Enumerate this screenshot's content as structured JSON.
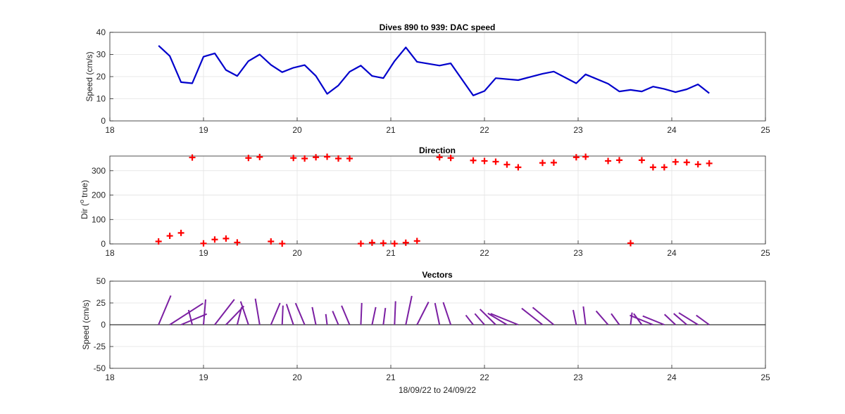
{
  "chart_data": [
    {
      "type": "line",
      "title": "Dives 890 to 939: DAC speed",
      "xlabel": "",
      "ylabel": "Speed (cm/s)",
      "xlim": [
        18,
        25
      ],
      "ylim": [
        0,
        40
      ],
      "xticks": [
        "18",
        "19",
        "20",
        "21",
        "22",
        "23",
        "24",
        "25"
      ],
      "yticks": [
        "0",
        "10",
        "20",
        "30",
        "40"
      ],
      "grid": true,
      "color": "#0000cc",
      "x": [
        18.52,
        18.64,
        18.76,
        18.88,
        19.0,
        19.12,
        19.24,
        19.36,
        19.48,
        19.6,
        19.72,
        19.84,
        19.96,
        20.08,
        20.2,
        20.32,
        20.44,
        20.56,
        20.68,
        20.8,
        20.92,
        21.04,
        21.16,
        21.28,
        21.52,
        21.64,
        21.88,
        22.0,
        22.12,
        22.36,
        22.62,
        22.74,
        22.98,
        23.08,
        23.32,
        23.44,
        23.56,
        23.68,
        23.8,
        23.92,
        24.04,
        24.16,
        24.28,
        24.4
      ],
      "values": [
        34,
        29.3,
        17.5,
        17,
        29,
        30.5,
        23,
        20.3,
        27,
        30,
        25.3,
        22,
        24,
        25.2,
        20.3,
        12.2,
        16,
        22.2,
        25,
        20.3,
        19.3,
        27,
        33.2,
        26.7,
        25,
        26,
        11.5,
        13.5,
        19.3,
        18.4,
        21.3,
        22.3,
        17,
        21,
        16.8,
        13.3,
        14,
        13.3,
        15.5,
        14.4,
        13,
        14.3,
        16.5,
        12.5
      ]
    },
    {
      "type": "scatter",
      "title": "Direction",
      "xlabel": "",
      "ylabel": "Dir (° true)",
      "ylabel_parts": {
        "prefix": "Dir (",
        "superscript": "o",
        "suffix": " true)"
      },
      "xlim": [
        18,
        25
      ],
      "ylim": [
        0,
        360
      ],
      "xticks": [
        "18",
        "19",
        "20",
        "21",
        "22",
        "23",
        "24",
        "25"
      ],
      "yticks": [
        "0",
        "100",
        "200",
        "300"
      ],
      "grid": true,
      "marker": "+",
      "color": "#ff0000",
      "x": [
        18.52,
        18.64,
        18.76,
        18.88,
        19.0,
        19.12,
        19.24,
        19.36,
        19.48,
        19.6,
        19.72,
        19.84,
        19.96,
        20.08,
        20.2,
        20.32,
        20.44,
        20.56,
        20.68,
        20.8,
        20.92,
        21.04,
        21.16,
        21.28,
        21.52,
        21.64,
        21.88,
        22.0,
        22.12,
        22.24,
        22.36,
        22.62,
        22.74,
        22.98,
        23.08,
        23.32,
        23.44,
        23.56,
        23.68,
        23.8,
        23.92,
        24.04,
        24.16,
        24.28,
        24.4
      ],
      "values": [
        10,
        33,
        45,
        354,
        2,
        18,
        22,
        6,
        352,
        356,
        10,
        1,
        352,
        350,
        355,
        357,
        350,
        350,
        1,
        5,
        3,
        1,
        5,
        12,
        355,
        352,
        342,
        340,
        337,
        325,
        314,
        332,
        333,
        355,
        357,
        340,
        343,
        3,
        343,
        314,
        314,
        336,
        334,
        326,
        330
      ]
    },
    {
      "type": "vector",
      "title": "Vectors",
      "xlabel": "18/09/22 to 24/09/22",
      "ylabel": "Speed (cm/s)",
      "xlim": [
        18,
        25
      ],
      "ylim": [
        -50,
        50
      ],
      "xticks": [
        "18",
        "19",
        "20",
        "21",
        "22",
        "23",
        "24",
        "25"
      ],
      "yticks": [
        "-50",
        "-25",
        "0",
        "25",
        "50"
      ],
      "grid": true,
      "color": "#7b1fa2",
      "x": [
        18.52,
        18.64,
        18.76,
        18.88,
        19.0,
        19.12,
        19.24,
        19.36,
        19.48,
        19.6,
        19.72,
        19.84,
        19.96,
        20.08,
        20.2,
        20.32,
        20.44,
        20.56,
        20.68,
        20.8,
        20.92,
        21.04,
        21.16,
        21.28,
        21.52,
        21.64,
        21.88,
        22.0,
        22.12,
        22.24,
        22.36,
        22.62,
        22.74,
        22.98,
        23.08,
        23.32,
        23.44,
        23.56,
        23.68,
        23.8,
        23.92,
        24.04,
        24.16,
        24.28,
        24.4
      ],
      "speed": [
        34,
        29.3,
        17.5,
        17,
        29,
        30.5,
        23,
        20.3,
        27,
        30,
        25.3,
        22,
        24,
        25.2,
        20.3,
        12.2,
        16,
        22.2,
        25,
        20.3,
        19.3,
        27,
        33.2,
        26.7,
        25,
        26,
        11.5,
        13.5,
        19.3,
        16,
        18.4,
        21.3,
        22.3,
        17,
        21,
        16.8,
        13.3,
        14,
        13.3,
        15.5,
        14.4,
        13,
        14.3,
        16.5,
        12.5
      ],
      "direction": [
        10,
        33,
        45,
        354,
        2,
        18,
        22,
        6,
        352,
        356,
        10,
        1,
        352,
        350,
        355,
        357,
        350,
        350,
        1,
        5,
        3,
        1,
        5,
        12,
        355,
        352,
        342,
        340,
        337,
        325,
        314,
        332,
        333,
        355,
        357,
        340,
        343,
        3,
        343,
        314,
        314,
        336,
        334,
        326,
        330
      ]
    }
  ]
}
